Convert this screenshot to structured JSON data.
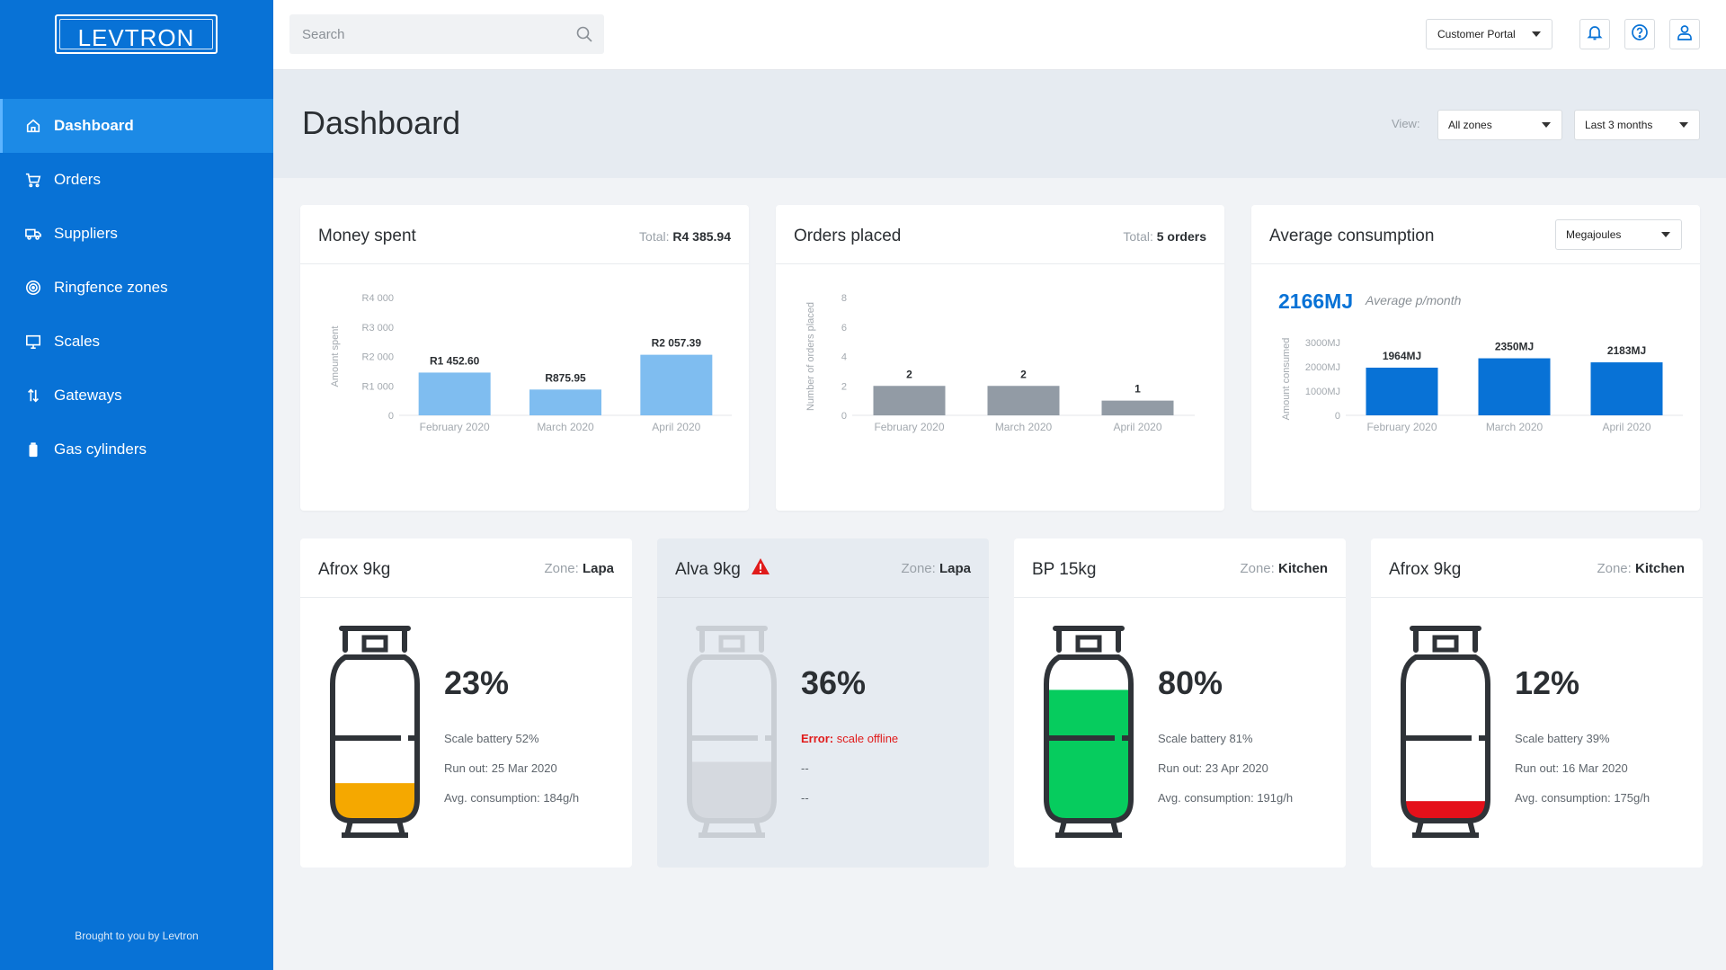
{
  "app": {
    "logo_text": "LEVTRON",
    "footer": "Brought to you by Levtron"
  },
  "sidebar": {
    "items": [
      {
        "label": "Dashboard",
        "icon": "home-icon",
        "active": true
      },
      {
        "label": "Orders",
        "icon": "cart-icon"
      },
      {
        "label": "Suppliers",
        "icon": "truck-icon"
      },
      {
        "label": "Ringfence zones",
        "icon": "radar-icon"
      },
      {
        "label": "Scales",
        "icon": "monitor-icon"
      },
      {
        "label": "Gateways",
        "icon": "transfer-arrows-icon"
      },
      {
        "label": "Gas cylinders",
        "icon": "battery-icon"
      }
    ]
  },
  "topbar": {
    "search_placeholder": "Search",
    "portal_label": "Customer Portal"
  },
  "header": {
    "title": "Dashboard",
    "view_label": "View:",
    "zone_select": "All zones",
    "period_select": "Last 3 months"
  },
  "colors": {
    "sidebar": "#0872d6",
    "money_bar": "#7fbdf0",
    "orders_bar": "#929ba5",
    "consumption_bar": "#0872d6",
    "fill_orange": "#f5a800",
    "fill_green": "#06cc5e",
    "fill_red": "#e5101a",
    "fill_grey": "#d5d9df"
  },
  "cards": {
    "money": {
      "title": "Money spent",
      "total_label": "Total:",
      "total_value": "R4 385.94"
    },
    "orders": {
      "title": "Orders placed",
      "total_label": "Total:",
      "total_value": "5 orders"
    },
    "consumption": {
      "title": "Average consumption",
      "unit_select": "Megajoules",
      "big_value": "2166MJ",
      "big_note": "Average p/month"
    }
  },
  "chart_data": [
    {
      "id": "money",
      "type": "bar",
      "categories": [
        "February 2020",
        "March 2020",
        "April 2020"
      ],
      "values": [
        1452.6,
        875.95,
        2057.39
      ],
      "value_labels": [
        "R1 452.60",
        "R875.95",
        "R2 057.39"
      ],
      "ylabel": "Amount spent",
      "ylim": [
        0,
        4000
      ],
      "yticks": [
        0,
        1000,
        2000,
        3000,
        4000
      ],
      "ytick_labels": [
        "0",
        "R1 000",
        "R2 000",
        "R3 000",
        "R4 000"
      ]
    },
    {
      "id": "orders",
      "type": "bar",
      "categories": [
        "February 2020",
        "March 2020",
        "April 2020"
      ],
      "values": [
        2,
        2,
        1
      ],
      "value_labels": [
        "2",
        "2",
        "1"
      ],
      "ylabel": "Number of orders placed",
      "ylim": [
        0,
        8
      ],
      "yticks": [
        0,
        2,
        4,
        6,
        8
      ],
      "ytick_labels": [
        "0",
        "2",
        "4",
        "6",
        "8"
      ]
    },
    {
      "id": "consumption",
      "type": "bar",
      "categories": [
        "February 2020",
        "March 2020",
        "April 2020"
      ],
      "values": [
        1964,
        2350,
        2183
      ],
      "value_labels": [
        "1964MJ",
        "2350MJ",
        "2183MJ"
      ],
      "ylabel": "Amount consumed",
      "ylim": [
        0,
        3000
      ],
      "yticks": [
        0,
        1000,
        2000,
        3000
      ],
      "ytick_labels": [
        "0",
        "1000MJ",
        "2000MJ",
        "3000MJ"
      ]
    }
  ],
  "cylinders": [
    {
      "name": "Afrox 9kg",
      "zone_label": "Zone:",
      "zone": "Lapa",
      "percent": "23%",
      "level": 0.23,
      "fill": "#f5a800",
      "offline": false,
      "lines": [
        "Scale battery 52%",
        "Run out: 25 Mar 2020",
        "Avg. consumption: 184g/h"
      ]
    },
    {
      "name": "Alva 9kg",
      "zone_label": "Zone:",
      "zone": "Lapa",
      "percent": "36%",
      "level": 0.36,
      "fill": "#d5d9df",
      "offline": true,
      "error_label": "Error:",
      "error_text": "scale offline",
      "lines": [
        "--",
        "--"
      ]
    },
    {
      "name": "BP 15kg",
      "zone_label": "Zone:",
      "zone": "Kitchen",
      "percent": "80%",
      "level": 0.8,
      "fill": "#06cc5e",
      "offline": false,
      "lines": [
        "Scale battery 81%",
        "Run out: 23 Apr 2020",
        "Avg. consumption: 191g/h"
      ]
    },
    {
      "name": "Afrox 9kg",
      "zone_label": "Zone:",
      "zone": "Kitchen",
      "percent": "12%",
      "level": 0.12,
      "fill": "#e5101a",
      "offline": false,
      "lines": [
        "Scale battery 39%",
        "Run out: 16 Mar 2020",
        "Avg. consumption: 175g/h"
      ]
    }
  ]
}
